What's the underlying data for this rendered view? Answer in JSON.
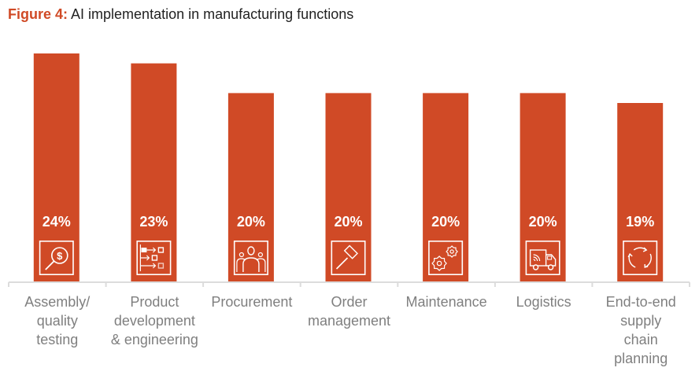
{
  "title": {
    "figure_label": "Figure 4:",
    "text": "AI implementation in manufacturing functions"
  },
  "colors": {
    "bar": "#d04a26",
    "accent": "#d04a26",
    "axis": "#dcdcdc",
    "label": "#7f7f7f",
    "value_label": "#ffffff"
  },
  "chart_data": {
    "type": "bar",
    "title": "Figure 4: AI implementation in manufacturing functions",
    "xlabel": "",
    "ylabel": "",
    "ylim": [
      0,
      25
    ],
    "grid": false,
    "legend": null,
    "value_suffix": "%",
    "categories": [
      "Assembly/ quality testing",
      "Product development & engineering",
      "Procurement",
      "Order management",
      "Maintenance",
      "Logistics",
      "End-to-end supply chain planning"
    ],
    "category_lines": [
      [
        "Assembly/",
        "quality",
        "testing"
      ],
      [
        "Product",
        "development",
        "& engineering"
      ],
      [
        "Procurement"
      ],
      [
        "Order",
        "management"
      ],
      [
        "Maintenance"
      ],
      [
        "Logistics"
      ],
      [
        "End-to-end",
        "supply",
        "chain",
        "planning"
      ]
    ],
    "values": [
      24,
      23,
      20,
      20,
      20,
      20,
      19
    ],
    "value_labels": [
      "24%",
      "23%",
      "20%",
      "20%",
      "20%",
      "20%",
      "19%"
    ],
    "icons": [
      "magnifier-dollar-icon",
      "process-flow-icon",
      "people-group-icon",
      "gavel-icon",
      "gears-icon",
      "delivery-truck-icon",
      "cycle-arrows-icon"
    ]
  }
}
